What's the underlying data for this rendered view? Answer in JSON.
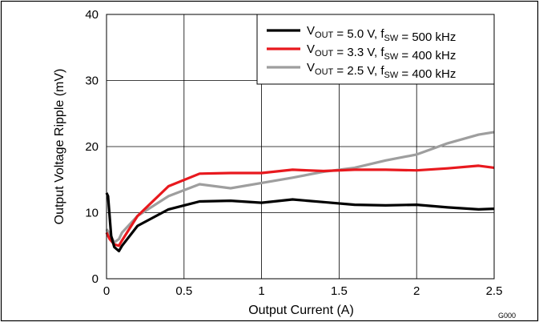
{
  "chart_data": {
    "type": "line",
    "xlabel": "Output Current (A)",
    "ylabel": "Output Voltage Ripple (mV)",
    "xlim": [
      0,
      2.5
    ],
    "ylim": [
      0,
      40
    ],
    "xticks": [
      0,
      0.5,
      1,
      1.5,
      2,
      2.5
    ],
    "xtick_labels": [
      "0",
      "0.5",
      "1",
      "1.5",
      "2",
      "2.5"
    ],
    "yticks": [
      0,
      10,
      20,
      30,
      40
    ],
    "ytick_labels": [
      "0",
      "10",
      "20",
      "30",
      "40"
    ],
    "grid": true,
    "legend_position": "top-right",
    "figure_id": "G000",
    "series": [
      {
        "legend": {
          "v": "V",
          "vsub": "OUT",
          "v_rest": " = 5.0 V, f",
          "fsub": "SW",
          "f_rest": " = 500 kHz"
        },
        "color": "#000000",
        "x": [
          0,
          0.01,
          0.03,
          0.05,
          0.08,
          0.1,
          0.2,
          0.4,
          0.6,
          0.8,
          1.0,
          1.2,
          1.4,
          1.6,
          1.8,
          2.0,
          2.2,
          2.4,
          2.5
        ],
        "y": [
          13,
          12.5,
          6.5,
          4.8,
          4.2,
          5.0,
          8.0,
          10.5,
          11.7,
          11.8,
          11.5,
          12.0,
          11.6,
          11.2,
          11.1,
          11.2,
          10.8,
          10.5,
          10.6
        ]
      },
      {
        "legend": {
          "v": "V",
          "vsub": "OUT",
          "v_rest": " = 3.3 V, f",
          "fsub": "SW",
          "f_rest": " = 400 kHz"
        },
        "color": "#e8191e",
        "x": [
          0,
          0.02,
          0.05,
          0.08,
          0.1,
          0.2,
          0.4,
          0.6,
          0.8,
          1.0,
          1.2,
          1.4,
          1.6,
          1.8,
          2.0,
          2.2,
          2.4,
          2.5
        ],
        "y": [
          7.0,
          6.0,
          5.2,
          5.0,
          5.8,
          9.5,
          14.0,
          15.9,
          16.0,
          16.0,
          16.5,
          16.3,
          16.5,
          16.5,
          16.4,
          16.7,
          17.1,
          16.8
        ]
      },
      {
        "legend": {
          "v": "V",
          "vsub": "OUT",
          "v_rest": " = 2.5 V, f",
          "fsub": "SW",
          "f_rest": " = 400 kHz"
        },
        "color": "#9e9e9e",
        "x": [
          0,
          0.02,
          0.05,
          0.08,
          0.1,
          0.2,
          0.4,
          0.6,
          0.8,
          1.0,
          1.2,
          1.4,
          1.6,
          1.8,
          2.0,
          2.2,
          2.4,
          2.5
        ],
        "y": [
          7.5,
          6.8,
          5.5,
          6.0,
          7.0,
          9.5,
          12.5,
          14.3,
          13.7,
          14.5,
          15.3,
          16.2,
          16.8,
          17.9,
          18.8,
          20.5,
          21.8,
          22.2
        ]
      }
    ]
  }
}
